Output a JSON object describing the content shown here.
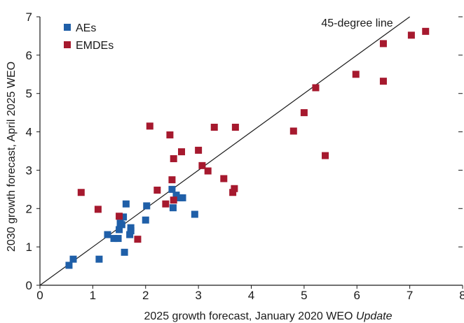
{
  "chart_data": {
    "type": "scatter",
    "xlabel": "2025 growth forecast, January 2020 WEO",
    "xlabel_italic_suffix": "Update",
    "ylabel": "2030 growth forecast, April 2025 WEO",
    "xlim": [
      0,
      8
    ],
    "ylim": [
      0,
      7
    ],
    "x_ticks": [
      "0",
      "1",
      "2",
      "3",
      "4",
      "5",
      "6",
      "7",
      "8"
    ],
    "y_ticks": [
      "0",
      "1",
      "2",
      "3",
      "4",
      "5",
      "6",
      "7"
    ],
    "grid": false,
    "legend_placement": "top-left",
    "reference_line": {
      "label": "45-degree line",
      "from": [
        0,
        0
      ],
      "to": [
        7,
        7
      ]
    },
    "series": [
      {
        "name": "AEs",
        "color": "#1f5fa8",
        "points": [
          [
            0.55,
            0.52
          ],
          [
            0.63,
            0.68
          ],
          [
            1.12,
            0.68
          ],
          [
            1.28,
            1.32
          ],
          [
            1.4,
            1.22
          ],
          [
            1.48,
            1.22
          ],
          [
            1.5,
            1.45
          ],
          [
            1.52,
            1.62
          ],
          [
            1.55,
            1.58
          ],
          [
            1.58,
            1.78
          ],
          [
            1.6,
            0.86
          ],
          [
            1.63,
            2.12
          ],
          [
            1.7,
            1.32
          ],
          [
            1.72,
            1.42
          ],
          [
            1.72,
            1.5
          ],
          [
            2.0,
            1.7
          ],
          [
            2.02,
            2.07
          ],
          [
            2.5,
            2.5
          ],
          [
            2.52,
            2.02
          ],
          [
            2.58,
            2.35
          ],
          [
            2.65,
            2.28
          ],
          [
            2.7,
            2.28
          ],
          [
            2.93,
            1.85
          ]
        ]
      },
      {
        "name": "EMDEs",
        "color": "#a6192e",
        "points": [
          [
            0.78,
            2.42
          ],
          [
            1.1,
            1.98
          ],
          [
            1.5,
            1.8
          ],
          [
            1.85,
            1.2
          ],
          [
            2.08,
            4.15
          ],
          [
            2.22,
            2.48
          ],
          [
            2.38,
            2.12
          ],
          [
            2.46,
            3.92
          ],
          [
            2.5,
            2.75
          ],
          [
            2.53,
            2.22
          ],
          [
            2.53,
            3.3
          ],
          [
            2.68,
            3.48
          ],
          [
            3.0,
            3.52
          ],
          [
            3.07,
            3.12
          ],
          [
            3.18,
            2.98
          ],
          [
            3.3,
            4.12
          ],
          [
            3.48,
            2.78
          ],
          [
            3.65,
            2.42
          ],
          [
            3.68,
            2.52
          ],
          [
            3.7,
            4.12
          ],
          [
            4.8,
            4.02
          ],
          [
            5.0,
            4.5
          ],
          [
            5.22,
            5.15
          ],
          [
            5.4,
            3.38
          ],
          [
            5.98,
            5.5
          ],
          [
            6.5,
            5.32
          ],
          [
            6.5,
            6.3
          ],
          [
            7.03,
            6.52
          ],
          [
            7.3,
            6.62
          ]
        ]
      }
    ]
  }
}
